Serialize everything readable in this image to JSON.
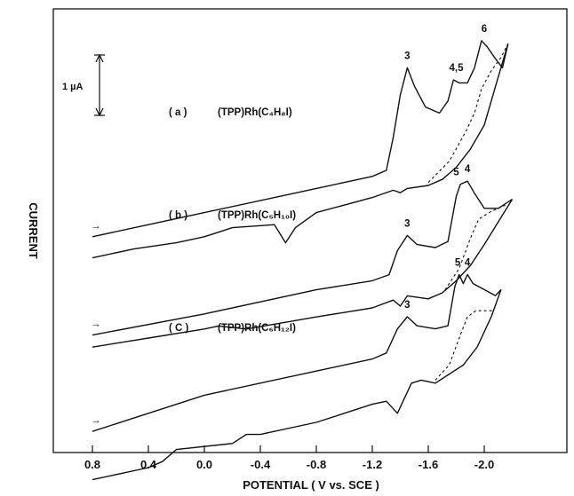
{
  "chart_data": {
    "type": "line",
    "xlabel": "POTENTIAL ( V vs. SCE )",
    "ylabel": "CURRENT",
    "xlim": [
      1.08,
      -2.35
    ],
    "x_direction": "reversed",
    "x_ticks": [
      0.8,
      0.4,
      0.0,
      -0.4,
      -0.8,
      -1.2,
      -1.6,
      -2.0
    ],
    "x_tick_labels": [
      "0.8",
      "0.4",
      "0.0",
      "-0.4",
      "-0.8",
      "-1.2",
      "-1.6",
      "-2.0"
    ],
    "grid": false,
    "scale_bar": {
      "label": "1 µA",
      "value_uA": 1
    },
    "scan_arrow": "→",
    "curves": [
      {
        "id": "a",
        "label_tag": "( a )",
        "label_compound": "(TPP)Rh(C₄H₈I)",
        "peaks": [
          {
            "label": "3",
            "potential": -1.45
          },
          {
            "label": "4,5",
            "potential": -1.8
          },
          {
            "label": "6",
            "potential": -2.0
          }
        ],
        "forward": [
          [
            0.8,
            -1.35
          ],
          [
            0.0,
            -0.95
          ],
          [
            -0.8,
            -0.55
          ],
          [
            -1.2,
            -0.35
          ],
          [
            -1.3,
            -0.25
          ],
          [
            -1.35,
            0.3
          ],
          [
            -1.4,
            1.0
          ],
          [
            -1.45,
            1.45
          ],
          [
            -1.5,
            1.15
          ],
          [
            -1.58,
            0.8
          ],
          [
            -1.68,
            0.7
          ],
          [
            -1.74,
            0.9
          ],
          [
            -1.78,
            1.25
          ],
          [
            -1.82,
            1.2
          ],
          [
            -1.88,
            1.2
          ],
          [
            -1.93,
            1.45
          ],
          [
            -1.98,
            1.9
          ],
          [
            -2.02,
            1.8
          ],
          [
            -2.08,
            1.6
          ],
          [
            -2.13,
            1.45
          ],
          [
            -2.17,
            1.85
          ]
        ],
        "reverse": [
          [
            -2.17,
            1.85
          ],
          [
            -2.1,
            1.3
          ],
          [
            -2.0,
            0.5
          ],
          [
            -1.9,
            0.1
          ],
          [
            -1.8,
            -0.2
          ],
          [
            -1.7,
            -0.4
          ],
          [
            -1.6,
            -0.5
          ],
          [
            -1.45,
            -0.55
          ],
          [
            -1.4,
            -0.62
          ],
          [
            -1.35,
            -0.58
          ],
          [
            -1.2,
            -0.7
          ],
          [
            -0.8,
            -0.95
          ],
          [
            -0.65,
            -1.2
          ],
          [
            -0.58,
            -1.45
          ],
          [
            -0.5,
            -1.15
          ],
          [
            -0.2,
            -1.2
          ],
          [
            0.0,
            -1.35
          ],
          [
            0.2,
            -1.45
          ],
          [
            0.5,
            -1.55
          ],
          [
            0.8,
            -1.7
          ]
        ],
        "dashed": [
          [
            -1.6,
            -0.45
          ],
          [
            -1.75,
            -0.1
          ],
          [
            -1.87,
            0.4
          ],
          [
            -1.93,
            0.7
          ],
          [
            -1.98,
            1.1
          ],
          [
            -2.05,
            1.4
          ],
          [
            -2.12,
            1.62
          ],
          [
            -2.17,
            1.85
          ]
        ]
      },
      {
        "id": "b",
        "label_tag": "( b )",
        "label_compound": "(TPP)Rh(C₅H₁₀I)",
        "peaks": [
          {
            "label": "3",
            "potential": -1.45
          },
          {
            "label": "5",
            "potential": -1.8
          },
          {
            "label": "4",
            "potential": -1.88
          }
        ],
        "forward": [
          [
            0.8,
            -1.2
          ],
          [
            0.0,
            -0.85
          ],
          [
            -0.8,
            -0.45
          ],
          [
            -1.2,
            -0.3
          ],
          [
            -1.32,
            -0.2
          ],
          [
            -1.38,
            0.2
          ],
          [
            -1.45,
            0.45
          ],
          [
            -1.52,
            0.3
          ],
          [
            -1.65,
            0.25
          ],
          [
            -1.74,
            0.35
          ],
          [
            -1.8,
            1.1
          ],
          [
            -1.83,
            1.3
          ],
          [
            -1.88,
            1.35
          ],
          [
            -1.93,
            1.15
          ],
          [
            -2.0,
            0.9
          ],
          [
            -2.1,
            0.9
          ],
          [
            -2.2,
            1.05
          ]
        ],
        "reverse": [
          [
            -2.2,
            1.05
          ],
          [
            -2.12,
            0.75
          ],
          [
            -2.0,
            0.3
          ],
          [
            -1.9,
            -0.05
          ],
          [
            -1.8,
            -0.3
          ],
          [
            -1.7,
            -0.5
          ],
          [
            -1.6,
            -0.6
          ],
          [
            -1.45,
            -0.55
          ],
          [
            -1.4,
            -0.72
          ],
          [
            -1.35,
            -0.62
          ],
          [
            -1.2,
            -0.75
          ],
          [
            -0.8,
            -0.9
          ],
          [
            -0.3,
            -1.1
          ],
          [
            -0.1,
            -1.05
          ],
          [
            0.0,
            -1.1
          ],
          [
            0.4,
            -1.25
          ],
          [
            0.8,
            -1.4
          ]
        ],
        "dashed": [
          [
            -1.72,
            -0.45
          ],
          [
            -1.82,
            -0.1
          ],
          [
            -1.9,
            0.4
          ],
          [
            -1.96,
            0.72
          ],
          [
            -2.05,
            0.85
          ],
          [
            -2.15,
            0.95
          ]
        ]
      },
      {
        "id": "c",
        "label_tag": "( C )",
        "label_compound": "(TPP)Rh(C₆H₁₂I)",
        "peaks": [
          {
            "label": "3",
            "potential": -1.45
          },
          {
            "label": "5",
            "potential": -1.81
          },
          {
            "label": "4",
            "potential": -1.88
          }
        ],
        "forward": [
          [
            0.8,
            -0.9
          ],
          [
            0.0,
            -0.3
          ],
          [
            -0.8,
            0.1
          ],
          [
            -1.2,
            0.3
          ],
          [
            -1.3,
            0.4
          ],
          [
            -1.38,
            0.8
          ],
          [
            -1.45,
            1.0
          ],
          [
            -1.52,
            0.85
          ],
          [
            -1.65,
            0.8
          ],
          [
            -1.74,
            0.85
          ],
          [
            -1.79,
            1.5
          ],
          [
            -1.82,
            1.7
          ],
          [
            -1.85,
            1.55
          ],
          [
            -1.88,
            1.7
          ],
          [
            -1.92,
            1.55
          ],
          [
            -2.0,
            1.45
          ],
          [
            -2.08,
            1.35
          ],
          [
            -2.12,
            1.45
          ]
        ],
        "reverse": [
          [
            -2.12,
            1.45
          ],
          [
            -2.05,
            1.0
          ],
          [
            -1.95,
            0.5
          ],
          [
            -1.85,
            0.2
          ],
          [
            -1.75,
            0.05
          ],
          [
            -1.65,
            -0.1
          ],
          [
            -1.55,
            -0.05
          ],
          [
            -1.48,
            -0.1
          ],
          [
            -1.42,
            -0.4
          ],
          [
            -1.38,
            -0.6
          ],
          [
            -1.3,
            -0.4
          ],
          [
            -1.2,
            -0.45
          ],
          [
            -0.8,
            -0.75
          ],
          [
            -0.4,
            -0.95
          ],
          [
            -0.3,
            -0.95
          ],
          [
            -0.2,
            -1.1
          ],
          [
            0.2,
            -1.2
          ],
          [
            0.3,
            -1.4
          ],
          [
            0.4,
            -1.5
          ],
          [
            0.6,
            -1.6
          ],
          [
            0.8,
            -1.7
          ]
        ],
        "dashed": [
          [
            -1.65,
            -0.05
          ],
          [
            -1.75,
            0.2
          ],
          [
            -1.83,
            0.7
          ],
          [
            -1.88,
            1.0
          ],
          [
            -1.94,
            1.1
          ],
          [
            -2.0,
            1.1
          ],
          [
            -2.06,
            1.1
          ]
        ]
      }
    ]
  }
}
